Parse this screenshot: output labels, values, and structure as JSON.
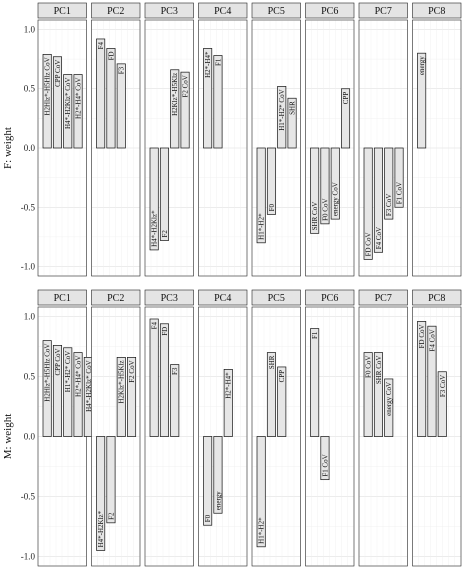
{
  "chart_data": [
    {
      "type": "bar",
      "ylabel": "F: weight",
      "ylim": [
        -1.08,
        1.08
      ],
      "yticks": [
        -1.0,
        -0.5,
        0.0,
        0.5,
        1.0
      ],
      "ytick_labels": [
        "-1.0",
        "-0.5",
        "0.0",
        "0.5",
        "1.0"
      ],
      "panels": [
        {
          "title": "PC1",
          "bars": [
            {
              "label": "H2Hlz*-H5Hlz CoV",
              "value": 0.79
            },
            {
              "label": "CPP CoV",
              "value": 0.77
            },
            {
              "label": "H4*-H2Klz* CoV",
              "value": 0.62
            },
            {
              "label": "H2*-H4* CoV",
              "value": 0.62
            }
          ]
        },
        {
          "title": "PC2",
          "bars": [
            {
              "label": "F4",
              "value": 0.92
            },
            {
              "label": "FD",
              "value": 0.84
            },
            {
              "label": "F3",
              "value": 0.71
            }
          ]
        },
        {
          "title": "PC3",
          "bars": [
            {
              "label": "H4*-H2Klz*",
              "value": -0.86
            },
            {
              "label": "F2",
              "value": -0.78
            },
            {
              "label": "H2Klz*-H5Klz",
              "value": 0.66
            },
            {
              "label": "F2 CoV",
              "value": 0.64
            }
          ]
        },
        {
          "title": "PC4",
          "bars": [
            {
              "label": "H2*-H4*",
              "value": 0.84
            },
            {
              "label": "F1",
              "value": 0.78
            }
          ]
        },
        {
          "title": "PC5",
          "bars": [
            {
              "label": "H1*-H2*",
              "value": -0.8
            },
            {
              "label": "F0",
              "value": -0.56
            },
            {
              "label": "H1*-H2* CoV",
              "value": 0.52
            },
            {
              "label": "SHR",
              "value": 0.42
            }
          ]
        },
        {
          "title": "PC6",
          "bars": [
            {
              "label": "SHR CoV",
              "value": -0.72
            },
            {
              "label": "F0 CoV",
              "value": -0.64
            },
            {
              "label": "energy CoV",
              "value": -0.6
            },
            {
              "label": "CPP",
              "value": 0.5
            }
          ]
        },
        {
          "title": "PC7",
          "bars": [
            {
              "label": "FD CoV",
              "value": -0.94
            },
            {
              "label": "F4 CoV",
              "value": -0.88
            },
            {
              "label": "F3 CoV",
              "value": -0.6
            },
            {
              "label": "F1 CoV",
              "value": -0.5
            }
          ]
        },
        {
          "title": "PC8",
          "bars": [
            {
              "label": "energy",
              "value": 0.8
            }
          ]
        }
      ]
    },
    {
      "type": "bar",
      "ylabel": "M: weight",
      "ylim": [
        -1.08,
        1.08
      ],
      "yticks": [
        -1.0,
        -0.5,
        0.0,
        0.5,
        1.0
      ],
      "ytick_labels": [
        "-1.0",
        "-0.5",
        "0.0",
        "0.5",
        "1.0"
      ],
      "panels": [
        {
          "title": "PC1",
          "bars": [
            {
              "label": "H2Hlz*-H5Hlz CoV",
              "value": 0.8
            },
            {
              "label": "CPP CoV",
              "value": 0.76
            },
            {
              "label": "H1*-H2* CoV",
              "value": 0.74
            },
            {
              "label": "H2*-H4* CoV",
              "value": 0.7
            },
            {
              "label": "H4*-H2Klz* CoV",
              "value": 0.66
            }
          ]
        },
        {
          "title": "PC2",
          "bars": [
            {
              "label": "H4*-H2Klz*",
              "value": -0.95
            },
            {
              "label": "F2",
              "value": -0.72
            },
            {
              "label": "H2Klz*-H5Klz",
              "value": 0.66
            },
            {
              "label": "F2 CoV",
              "value": 0.66
            }
          ]
        },
        {
          "title": "PC3",
          "bars": [
            {
              "label": "F4",
              "value": 0.98
            },
            {
              "label": "FD",
              "value": 0.94
            },
            {
              "label": "F3",
              "value": 0.6
            }
          ]
        },
        {
          "title": "PC4",
          "bars": [
            {
              "label": "F0",
              "value": -0.74
            },
            {
              "label": "energy",
              "value": -0.64
            },
            {
              "label": "H2*-H4*",
              "value": 0.56
            }
          ]
        },
        {
          "title": "PC5",
          "bars": [
            {
              "label": "H1*-H2*",
              "value": -0.92
            },
            {
              "label": "SHR",
              "value": 0.7
            },
            {
              "label": "CPP",
              "value": 0.58
            }
          ]
        },
        {
          "title": "PC6",
          "bars": [
            {
              "label": "F1",
              "value": 0.9
            },
            {
              "label": "F1 CoV",
              "value": -0.36
            }
          ]
        },
        {
          "title": "PC7",
          "bars": [
            {
              "label": "F0 CoV",
              "value": 0.7
            },
            {
              "label": "SHR CoV",
              "value": 0.7
            },
            {
              "label": "energy CoV",
              "value": 0.48
            }
          ]
        },
        {
          "title": "PC8",
          "bars": [
            {
              "label": "FD CoV",
              "value": 0.96
            },
            {
              "label": "F4 CoV",
              "value": 0.92
            },
            {
              "label": "F3 CoV",
              "value": 0.54
            }
          ]
        }
      ]
    }
  ]
}
